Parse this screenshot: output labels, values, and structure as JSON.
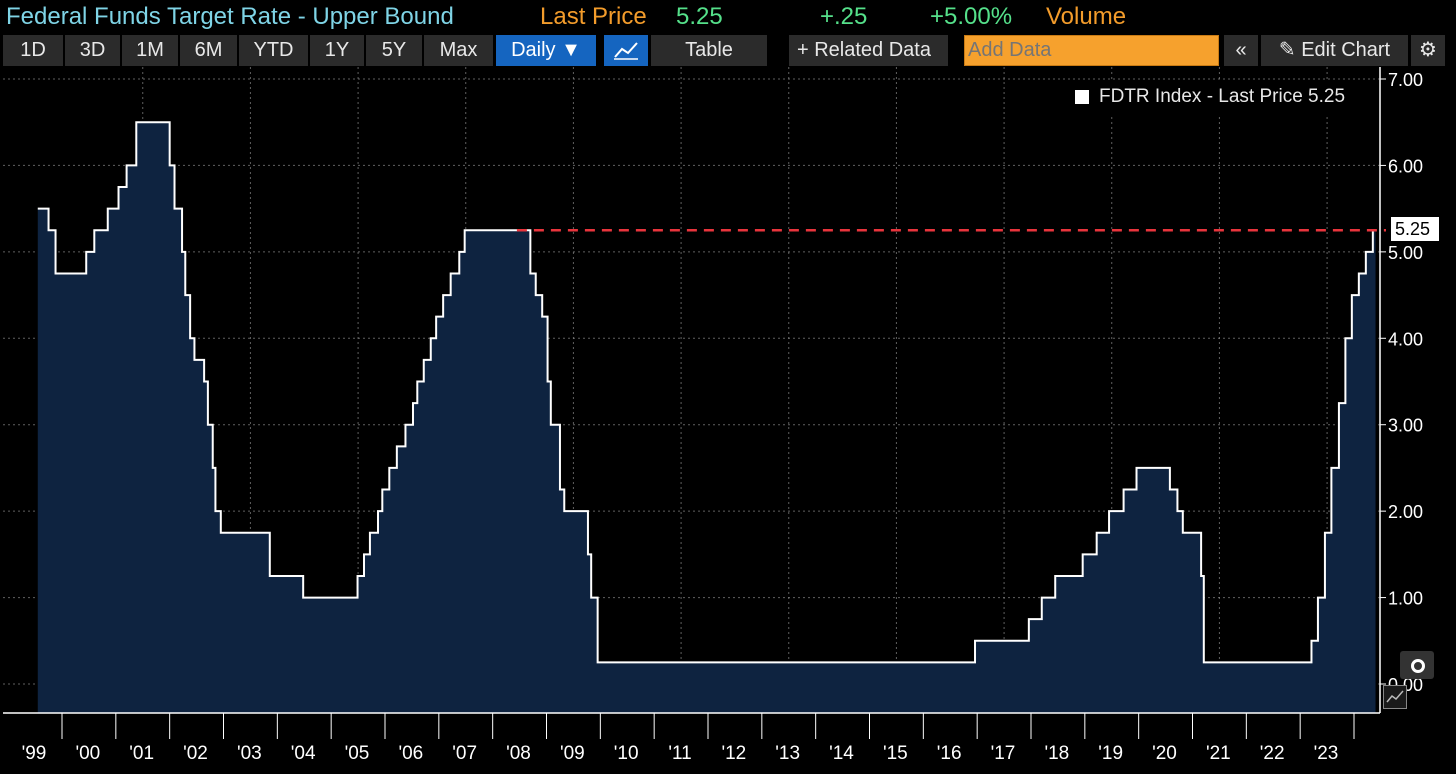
{
  "header": {
    "title": "Federal Funds Target Rate - Upper Bound",
    "last_price_label": "Last Price",
    "last_price": "5.25",
    "change": "+.25",
    "change_pct": "+5.00%",
    "volume_label": "Volume"
  },
  "toolbar": {
    "periods": [
      "1D",
      "3D",
      "1M",
      "6M",
      "YTD",
      "1Y",
      "5Y",
      "Max"
    ],
    "frequency": "Daily ▼",
    "table": "Table",
    "related": "+ Related Data",
    "add_data_placeholder": "Add Data",
    "collapse": "«",
    "edit_chart": "✎ Edit Chart",
    "settings": "⚙"
  },
  "legend": {
    "label": "FDTR Index - Last Price 5.25"
  },
  "colors": {
    "line": "#ffffff",
    "fill": "#0e2340",
    "reference": "#e8343c",
    "grid": "#8a8a8a"
  },
  "chart_data": {
    "type": "area",
    "title": "Federal Funds Target Rate - Upper Bound",
    "series": [
      {
        "name": "FDTR Index - Last Price",
        "points": [
          [
            1998.55,
            5.5
          ],
          [
            1998.75,
            5.25
          ],
          [
            1998.88,
            4.75
          ],
          [
            1999.45,
            5.0
          ],
          [
            1999.6,
            5.25
          ],
          [
            1999.85,
            5.5
          ],
          [
            2000.05,
            5.75
          ],
          [
            2000.2,
            6.0
          ],
          [
            2000.38,
            6.5
          ],
          [
            2001.0,
            6.0
          ],
          [
            2001.09,
            5.5
          ],
          [
            2001.23,
            5.0
          ],
          [
            2001.29,
            4.5
          ],
          [
            2001.38,
            4.0
          ],
          [
            2001.46,
            3.75
          ],
          [
            2001.64,
            3.5
          ],
          [
            2001.71,
            3.0
          ],
          [
            2001.8,
            2.5
          ],
          [
            2001.85,
            2.0
          ],
          [
            2001.95,
            1.75
          ],
          [
            2002.86,
            1.25
          ],
          [
            2003.48,
            1.0
          ],
          [
            2004.49,
            1.25
          ],
          [
            2004.61,
            1.5
          ],
          [
            2004.72,
            1.75
          ],
          [
            2004.87,
            2.0
          ],
          [
            2004.95,
            2.25
          ],
          [
            2005.08,
            2.5
          ],
          [
            2005.22,
            2.75
          ],
          [
            2005.38,
            3.0
          ],
          [
            2005.52,
            3.25
          ],
          [
            2005.6,
            3.5
          ],
          [
            2005.72,
            3.75
          ],
          [
            2005.85,
            4.0
          ],
          [
            2005.95,
            4.25
          ],
          [
            2006.08,
            4.5
          ],
          [
            2006.22,
            4.75
          ],
          [
            2006.38,
            5.0
          ],
          [
            2006.48,
            5.25
          ],
          [
            2007.7,
            4.75
          ],
          [
            2007.8,
            4.5
          ],
          [
            2007.92,
            4.25
          ],
          [
            2008.02,
            3.5
          ],
          [
            2008.08,
            3.0
          ],
          [
            2008.25,
            2.25
          ],
          [
            2008.33,
            2.0
          ],
          [
            2008.77,
            1.5
          ],
          [
            2008.83,
            1.0
          ],
          [
            2008.95,
            0.25
          ],
          [
            2015.96,
            0.5
          ],
          [
            2016.96,
            0.75
          ],
          [
            2017.2,
            1.0
          ],
          [
            2017.45,
            1.25
          ],
          [
            2017.96,
            1.5
          ],
          [
            2018.22,
            1.75
          ],
          [
            2018.45,
            2.0
          ],
          [
            2018.72,
            2.25
          ],
          [
            2018.96,
            2.5
          ],
          [
            2019.58,
            2.25
          ],
          [
            2019.72,
            2.0
          ],
          [
            2019.82,
            1.75
          ],
          [
            2020.16,
            1.25
          ],
          [
            2020.21,
            0.25
          ],
          [
            2022.21,
            0.5
          ],
          [
            2022.33,
            1.0
          ],
          [
            2022.46,
            1.75
          ],
          [
            2022.58,
            2.5
          ],
          [
            2022.72,
            3.25
          ],
          [
            2022.84,
            4.0
          ],
          [
            2022.96,
            4.5
          ],
          [
            2023.09,
            4.75
          ],
          [
            2023.22,
            5.0
          ],
          [
            2023.35,
            5.25
          ],
          [
            2023.4,
            5.25
          ]
        ]
      }
    ],
    "last_value": 5.25,
    "reference_line": {
      "value": 5.25,
      "style": "dashed"
    },
    "ylim": [
      0,
      7
    ],
    "xlim": [
      1998.55,
      2023.4
    ],
    "yticks": [
      0,
      1,
      2,
      3,
      4,
      5,
      6,
      7
    ],
    "ytick_labels": [
      "0.00",
      "1.00",
      "2.00",
      "3.00",
      "4.00",
      "5.00",
      "6.00",
      "7.00"
    ],
    "xtick_years": [
      1999,
      2000,
      2001,
      2002,
      2003,
      2004,
      2005,
      2006,
      2007,
      2008,
      2009,
      2010,
      2011,
      2012,
      2013,
      2014,
      2015,
      2016,
      2017,
      2018,
      2019,
      2020,
      2021,
      2022,
      2023
    ],
    "xtick_labels": [
      "'99",
      "'00",
      "'01",
      "'02",
      "'03",
      "'04",
      "'05",
      "'06",
      "'07",
      "'08",
      "'09",
      "'10",
      "'11",
      "'12",
      "'13",
      "'14",
      "'15",
      "'16",
      "'17",
      "'18",
      "'19",
      "'20",
      "'21",
      "'22",
      "'23"
    ],
    "xlabel": "",
    "ylabel": "",
    "grid": true,
    "legend": "top-right"
  }
}
